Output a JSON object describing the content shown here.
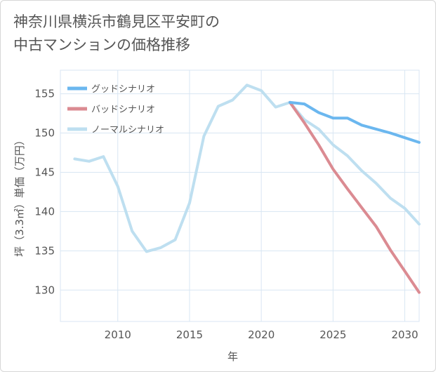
{
  "title_lines": [
    "神奈川県横浜市鶴見区平安町の",
    "中古マンションの価格推移"
  ],
  "colors": {
    "good": "#6bb7ef",
    "bad": "#db8b92",
    "normal": "#bedff0",
    "grid": "#d8e6f3",
    "axis": "#555555"
  },
  "chart_data": {
    "type": "line",
    "xlabel": "年",
    "ylabel": "坪（3.3㎡）単価（万円）",
    "xlim": [
      2006,
      2031
    ],
    "ylim": [
      126,
      158
    ],
    "x_ticks": [
      2010,
      2015,
      2020,
      2025,
      2030
    ],
    "y_ticks": [
      130,
      135,
      140,
      145,
      150,
      155
    ],
    "legend_position": "top-left",
    "grid": true,
    "series": [
      {
        "name": "グッドシナリオ",
        "color_key": "good",
        "x": [
          2022,
          2023,
          2024,
          2025,
          2026,
          2027,
          2028,
          2029,
          2030,
          2031
        ],
        "y": [
          153.9,
          153.7,
          152.6,
          151.9,
          151.9,
          151.0,
          150.5,
          150.0,
          149.4,
          148.8
        ]
      },
      {
        "name": "バッドシナリオ",
        "color_key": "bad",
        "x": [
          2022,
          2023,
          2024,
          2025,
          2026,
          2027,
          2028,
          2029,
          2030,
          2031
        ],
        "y": [
          153.9,
          151.3,
          148.5,
          145.4,
          142.9,
          140.5,
          138.1,
          135.1,
          132.4,
          129.7
        ]
      },
      {
        "name": "ノーマルシナリオ",
        "color_key": "normal",
        "x": [
          2007,
          2008,
          2009,
          2010,
          2011,
          2012,
          2013,
          2014,
          2015,
          2016,
          2017,
          2018,
          2019,
          2020,
          2021,
          2022,
          2023,
          2024,
          2025,
          2026,
          2027,
          2028,
          2029,
          2030,
          2031
        ],
        "y": [
          146.7,
          146.4,
          147.0,
          143.2,
          137.5,
          134.9,
          135.4,
          136.4,
          141.1,
          149.6,
          153.4,
          154.2,
          156.1,
          155.4,
          153.3,
          153.9,
          151.7,
          150.5,
          148.5,
          147.1,
          145.2,
          143.6,
          141.7,
          140.4,
          138.4
        ]
      }
    ]
  }
}
